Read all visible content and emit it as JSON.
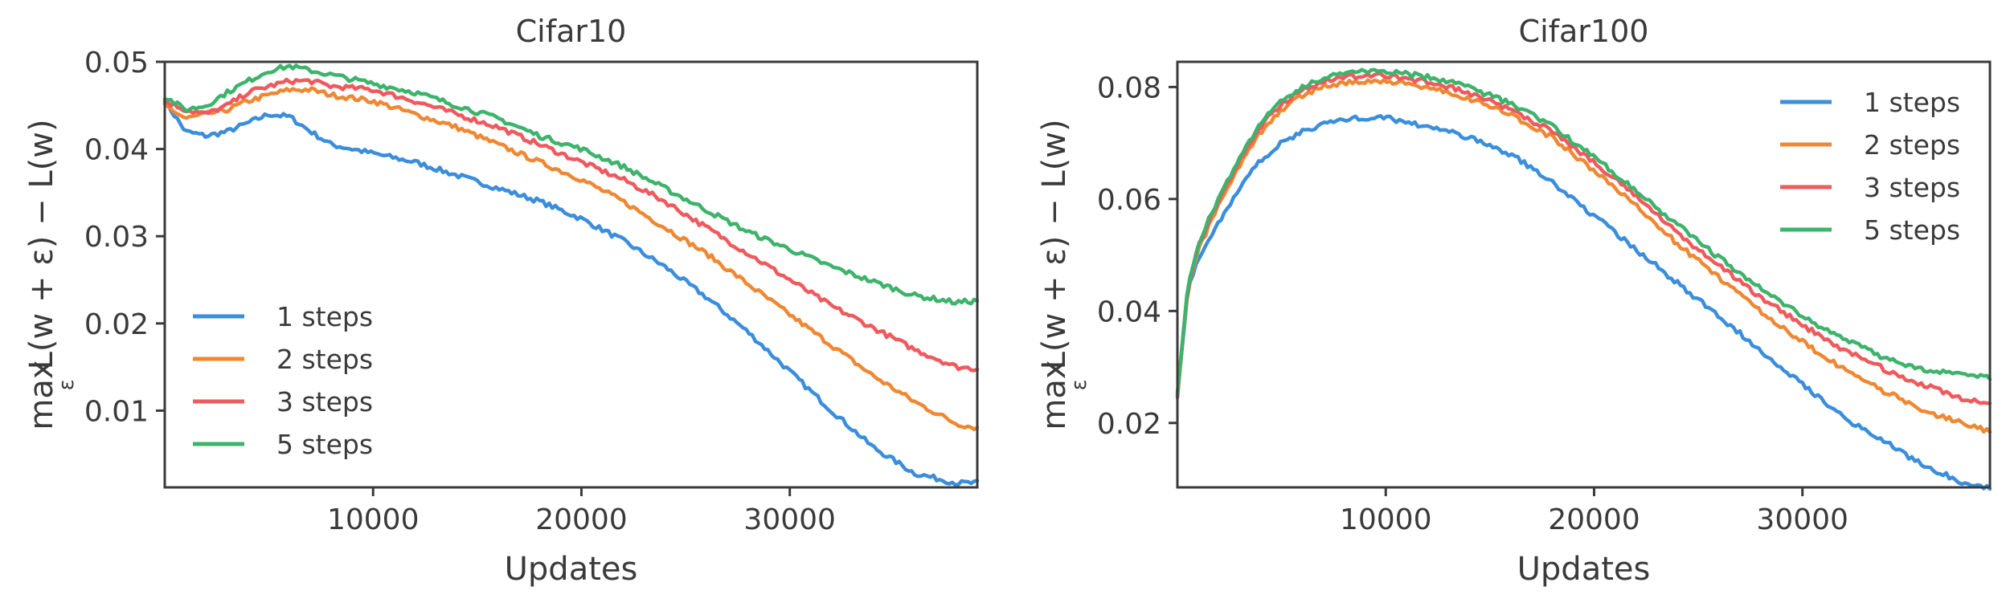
{
  "chart_data": [
    {
      "type": "line",
      "title": "Cifar10",
      "xlabel": "Updates",
      "ylabel": "max_ε L(w+ε) − L(w)",
      "ylabel_parts": {
        "main": "max",
        "sub": "ε",
        "rest": "L(w + ε) − L(w)"
      },
      "xlim": [
        0,
        39000
      ],
      "ylim": [
        0.0012,
        0.05
      ],
      "xticks": [
        10000,
        20000,
        30000
      ],
      "xtick_labels": [
        "10000",
        "20000",
        "30000"
      ],
      "yticks": [
        0.01,
        0.02,
        0.03,
        0.04,
        0.05
      ],
      "ytick_labels": [
        "0.01",
        "0.02",
        "0.03",
        "0.04",
        "0.05"
      ],
      "grid": false,
      "legend_position": "lower-left",
      "x": [
        0,
        1000,
        2000,
        3000,
        4000,
        5000,
        6000,
        7000,
        8000,
        10000,
        12000,
        14000,
        16000,
        18000,
        20000,
        22000,
        24000,
        26000,
        28000,
        30000,
        32000,
        34000,
        36000,
        38000,
        39000
      ],
      "series": [
        {
          "name": "1 steps",
          "color": "#3b8edb",
          "values": [
            0.0455,
            0.042,
            0.0415,
            0.042,
            0.043,
            0.044,
            0.0437,
            0.042,
            0.0405,
            0.0395,
            0.0385,
            0.037,
            0.0355,
            0.034,
            0.032,
            0.0295,
            0.0265,
            0.023,
            0.019,
            0.0145,
            0.01,
            0.0058,
            0.0028,
            0.0017,
            0.0017
          ]
        },
        {
          "name": "2 steps",
          "color": "#ee8833",
          "values": [
            0.045,
            0.0435,
            0.044,
            0.0445,
            0.0455,
            0.0462,
            0.0468,
            0.0468,
            0.0462,
            0.0455,
            0.044,
            0.0425,
            0.0405,
            0.0385,
            0.0365,
            0.034,
            0.031,
            0.028,
            0.0245,
            0.021,
            0.0175,
            0.014,
            0.011,
            0.0085,
            0.008
          ]
        },
        {
          "name": "3 steps",
          "color": "#ee5a5e",
          "values": [
            0.0455,
            0.0445,
            0.044,
            0.045,
            0.0465,
            0.0472,
            0.0478,
            0.0478,
            0.0472,
            0.0468,
            0.0455,
            0.044,
            0.0425,
            0.0405,
            0.0385,
            0.0365,
            0.034,
            0.031,
            0.028,
            0.025,
            0.022,
            0.0195,
            0.017,
            0.015,
            0.0148
          ]
        },
        {
          "name": "5 steps",
          "color": "#3db36b",
          "values": [
            0.046,
            0.0445,
            0.045,
            0.0465,
            0.0478,
            0.049,
            0.0495,
            0.049,
            0.0485,
            0.0475,
            0.0465,
            0.045,
            0.0435,
            0.0415,
            0.04,
            0.038,
            0.0355,
            0.033,
            0.0305,
            0.0285,
            0.0265,
            0.0248,
            0.0232,
            0.0224,
            0.0226
          ]
        }
      ]
    },
    {
      "type": "line",
      "title": "Cifar100",
      "xlabel": "Updates",
      "ylabel": "max_ε L(w+ε) − L(w)",
      "ylabel_parts": {
        "main": "max",
        "sub": "ε",
        "rest": "L(w + ε) − L(w)"
      },
      "xlim": [
        0,
        39000
      ],
      "ylim": [
        0.0085,
        0.0845
      ],
      "xticks": [
        10000,
        20000,
        30000
      ],
      "xtick_labels": [
        "10000",
        "20000",
        "30000"
      ],
      "yticks": [
        0.02,
        0.04,
        0.06,
        0.08
      ],
      "ytick_labels": [
        "0.02",
        "0.04",
        "0.06",
        "0.08"
      ],
      "grid": false,
      "legend_position": "upper-right",
      "x": [
        0,
        500,
        1000,
        2000,
        3000,
        4000,
        5000,
        6000,
        7000,
        8000,
        9000,
        10000,
        12000,
        14000,
        16000,
        18000,
        20000,
        22000,
        24000,
        26000,
        28000,
        30000,
        32000,
        34000,
        36000,
        38000,
        39000
      ],
      "series": [
        {
          "name": "1 steps",
          "color": "#3b8edb",
          "values": [
            0.025,
            0.044,
            0.049,
            0.056,
            0.062,
            0.067,
            0.07,
            0.072,
            0.0735,
            0.0742,
            0.0745,
            0.0745,
            0.073,
            0.071,
            0.068,
            0.063,
            0.057,
            0.051,
            0.045,
            0.039,
            0.033,
            0.027,
            0.021,
            0.0165,
            0.012,
            0.009,
            0.0085
          ]
        },
        {
          "name": "2 steps",
          "color": "#ee8833",
          "values": [
            0.025,
            0.044,
            0.051,
            0.059,
            0.066,
            0.072,
            0.076,
            0.0785,
            0.08,
            0.0808,
            0.081,
            0.081,
            0.08,
            0.078,
            0.075,
            0.071,
            0.065,
            0.059,
            0.052,
            0.046,
            0.04,
            0.0345,
            0.0295,
            0.0255,
            0.022,
            0.0195,
            0.0185
          ]
        },
        {
          "name": "3 steps",
          "color": "#ee5a5e",
          "values": [
            0.025,
            0.044,
            0.0515,
            0.06,
            0.067,
            0.073,
            0.077,
            0.0795,
            0.081,
            0.0818,
            0.082,
            0.082,
            0.081,
            0.079,
            0.076,
            0.072,
            0.0665,
            0.0605,
            0.054,
            0.048,
            0.0425,
            0.0375,
            0.033,
            0.0295,
            0.0265,
            0.024,
            0.0238
          ]
        },
        {
          "name": "5 steps",
          "color": "#3db36b",
          "values": [
            0.025,
            0.0445,
            0.052,
            0.0605,
            0.0675,
            0.0735,
            0.0775,
            0.08,
            0.0815,
            0.0825,
            0.0828,
            0.0828,
            0.0818,
            0.08,
            0.077,
            0.073,
            0.0675,
            0.0615,
            0.0555,
            0.0495,
            0.044,
            0.039,
            0.035,
            0.0315,
            0.0295,
            0.0283,
            0.0282
          ]
        }
      ]
    }
  ]
}
